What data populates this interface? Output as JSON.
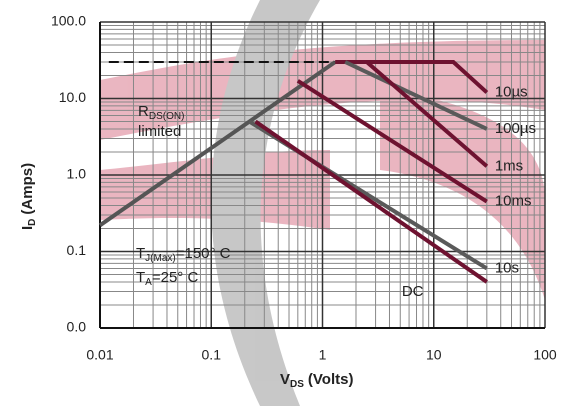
{
  "chart_data": {
    "type": "line",
    "x_label": {
      "main": "V",
      "sub": "DS",
      "unit": "(Volts)"
    },
    "y_label": {
      "main": "I",
      "sub": "D",
      "unit": "(Amps)"
    },
    "log_x": true,
    "log_y": true,
    "grid": true,
    "minor_grid": true,
    "xlim": [
      0.01,
      100
    ],
    "ylim": [
      0.01,
      100
    ],
    "xticks": [
      0.01,
      0.1,
      1,
      10,
      100
    ],
    "yticks": [
      {
        "value": 0.01,
        "label": "0.0"
      },
      {
        "value": 0.1,
        "label": "0.1"
      },
      {
        "value": 1,
        "label": "1.0"
      },
      {
        "value": 10,
        "label": "10.0"
      },
      {
        "value": 100,
        "label": "100.0"
      }
    ],
    "rds_limit": {
      "color": "#555555",
      "x": [
        0.01,
        1.3
      ],
      "values": [
        0.22,
        30
      ]
    },
    "current_limit": {
      "color": "#111111",
      "x": [
        0.012,
        1.3
      ],
      "values": [
        30,
        30
      ]
    },
    "series": [
      {
        "name": "10µs",
        "color": "#6e1230",
        "x": [
          1.3,
          15,
          30
        ],
        "values": [
          30,
          30,
          12
        ]
      },
      {
        "name": "100µs",
        "color": "#5a5a5a",
        "x": [
          1.6,
          30
        ],
        "values": [
          30,
          4
        ]
      },
      {
        "name": "1ms",
        "color": "#6e1230",
        "x": [
          2.5,
          30
        ],
        "values": [
          30,
          1.3
        ]
      },
      {
        "name": "10ms",
        "color": "#6e1230",
        "x": [
          0.6,
          30
        ],
        "values": [
          17,
          0.45
        ]
      },
      {
        "name": "10s",
        "color": "#5a5a5a",
        "x": [
          0.22,
          30
        ],
        "values": [
          5,
          0.06
        ]
      },
      {
        "name": "DC",
        "color": "#6e1230",
        "x": [
          0.25,
          30
        ],
        "values": [
          5,
          0.04
        ]
      }
    ],
    "annotations": [
      {
        "main": "R",
        "sub": "DS(ON)",
        "rest": "limited"
      },
      {
        "main": "T",
        "sub": "J(Max)",
        "rest": "=150° C"
      },
      {
        "main": "T",
        "sub": "A",
        "rest": "=25° C"
      }
    ]
  }
}
